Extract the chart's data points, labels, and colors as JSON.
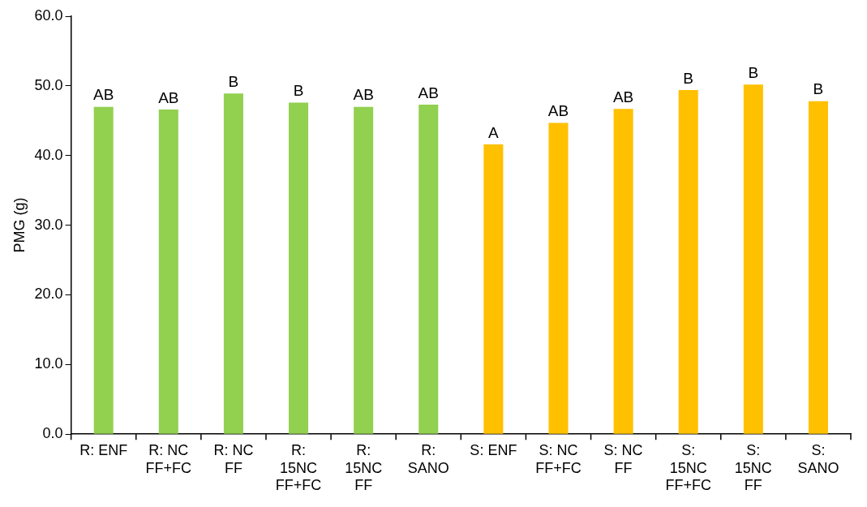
{
  "chart_data": {
    "type": "bar",
    "ylabel": "PMG (g)",
    "categories": [
      "R: ENF",
      "R: NC\nFF+FC",
      "R: NC\nFF",
      "R:\n15NC\nFF+FC",
      "R:\n15NC\nFF",
      "R:\nSANO",
      "S: ENF",
      "S: NC\nFF+FC",
      "S: NC\nFF",
      "S:\n15NC\nFF+FC",
      "S:\n15NC\nFF",
      "S:\nSANO"
    ],
    "values": [
      47.0,
      46.6,
      48.9,
      47.6,
      47.0,
      47.3,
      41.6,
      44.7,
      46.7,
      49.4,
      50.2,
      47.8
    ],
    "colors": [
      "#92d050",
      "#92d050",
      "#92d050",
      "#92d050",
      "#92d050",
      "#92d050",
      "#ffc000",
      "#ffc000",
      "#ffc000",
      "#ffc000",
      "#ffc000",
      "#ffc000"
    ],
    "ylim": [
      0,
      60
    ],
    "yticks": [
      {
        "value": 0,
        "label": "0.0"
      },
      {
        "value": 10,
        "label": "10.0"
      },
      {
        "value": 20,
        "label": "20.0"
      },
      {
        "value": 30,
        "label": "30.0"
      },
      {
        "value": 40,
        "label": "40.0"
      },
      {
        "value": 50,
        "label": "50.0"
      },
      {
        "value": 60,
        "label": "60.0"
      }
    ],
    "grid": false,
    "legend": false,
    "annotations": [
      {
        "text": "AB",
        "x": "R: ENF",
        "y": 47.0
      },
      {
        "text": "AB",
        "x": "R: NC\nFF+FC",
        "y": 46.6
      },
      {
        "text": "B",
        "x": "R: NC\nFF",
        "y": 48.9
      },
      {
        "text": "B",
        "x": "R:\n15NC\nFF+FC",
        "y": 47.6
      },
      {
        "text": "AB",
        "x": "R:\n15NC\nFF",
        "y": 47.0
      },
      {
        "text": "AB",
        "x": "R:\nSANO",
        "y": 47.3
      },
      {
        "text": "A",
        "x": "S: ENF",
        "y": 41.6
      },
      {
        "text": "AB",
        "x": "S: NC\nFF+FC",
        "y": 44.7
      },
      {
        "text": "AB",
        "x": "S: NC\nFF",
        "y": 46.7
      },
      {
        "text": "B",
        "x": "S:\n15NC\nFF+FC",
        "y": 49.4
      },
      {
        "text": "B",
        "x": "S:\n15NC\nFF",
        "y": 50.2
      },
      {
        "text": "B",
        "x": "S:\nSANO",
        "y": 47.8
      }
    ]
  }
}
